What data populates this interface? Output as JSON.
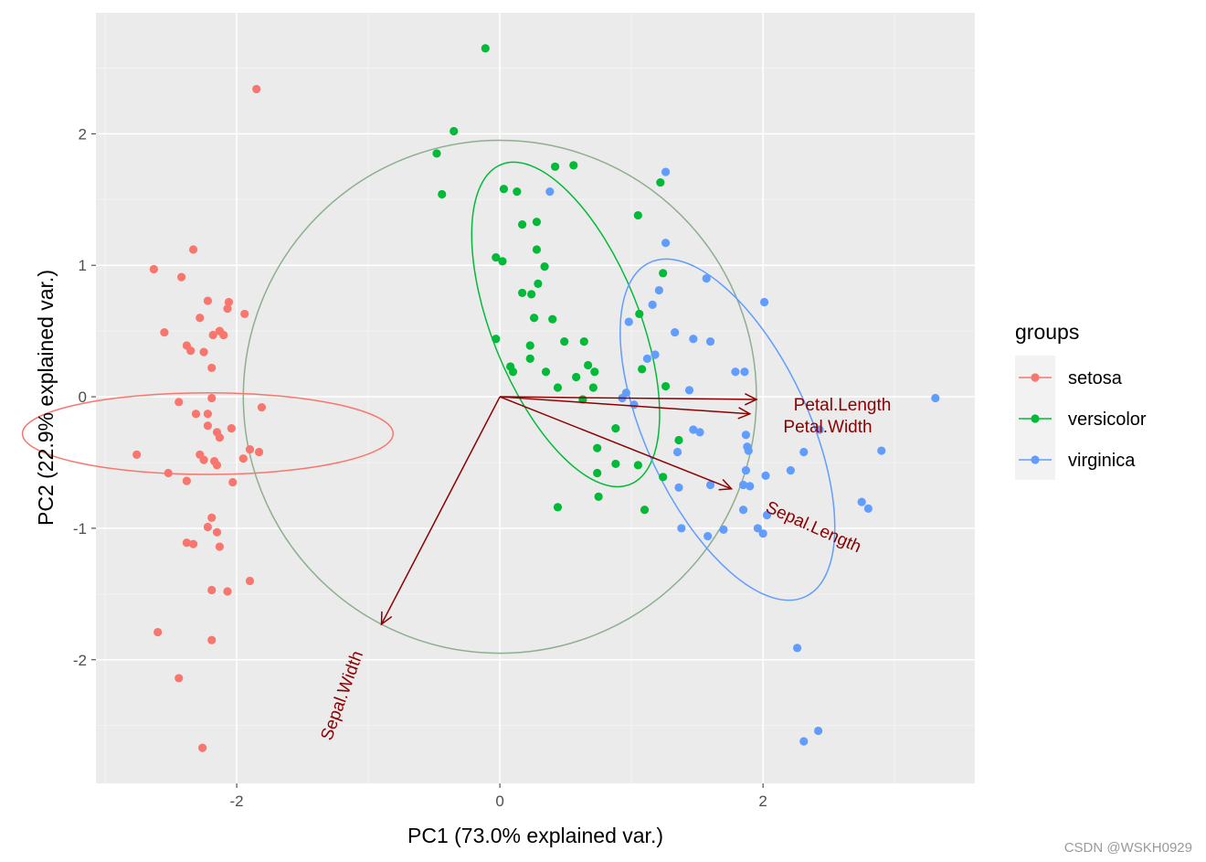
{
  "chart_data": {
    "type": "scatter",
    "title": "",
    "xlabel": "PC1 (73.0% explained var.)",
    "ylabel": "PC2 (22.9% explained var.)",
    "xlim": [
      -3.07,
      3.61
    ],
    "ylim": [
      -2.94,
      2.92
    ],
    "xticks": [
      -2,
      0,
      2
    ],
    "yticks": [
      -2,
      -1,
      0,
      1,
      2
    ],
    "xtick_labels": [
      "-2",
      "0",
      "2"
    ],
    "ytick_labels": [
      "-2",
      "-1",
      "0",
      "1",
      "2"
    ],
    "grid": true,
    "legend": {
      "title": "groups",
      "position": "right"
    },
    "series": [
      {
        "name": "setosa",
        "color": "#F8766D",
        "ellipse": {
          "cx": -2.22,
          "cy": -0.28,
          "rx": 0.31,
          "ry": 1.41,
          "angle": 90
        },
        "points": [
          [
            -2.33,
            1.12
          ],
          [
            -2.63,
            0.97
          ],
          [
            -2.42,
            0.91
          ],
          [
            -2.22,
            0.73
          ],
          [
            -2.06,
            0.72
          ],
          [
            -2.07,
            0.67
          ],
          [
            -1.94,
            0.63
          ],
          [
            -2.28,
            0.6
          ],
          [
            -2.55,
            0.49
          ],
          [
            -2.18,
            0.47
          ],
          [
            -2.13,
            0.5
          ],
          [
            -2.1,
            0.47
          ],
          [
            -2.38,
            0.39
          ],
          [
            -2.35,
            0.35
          ],
          [
            -2.25,
            0.34
          ],
          [
            -2.19,
            0.22
          ],
          [
            -2.19,
            -0.01
          ],
          [
            -2.44,
            -0.04
          ],
          [
            -1.81,
            -0.08
          ],
          [
            -2.31,
            -0.13
          ],
          [
            -2.22,
            -0.13
          ],
          [
            -2.22,
            -0.22
          ],
          [
            -2.04,
            -0.24
          ],
          [
            -2.15,
            -0.27
          ],
          [
            -2.13,
            -0.31
          ],
          [
            -2.76,
            -0.44
          ],
          [
            -2.28,
            -0.44
          ],
          [
            -2.25,
            -0.48
          ],
          [
            -2.17,
            -0.49
          ],
          [
            -2.15,
            -0.52
          ],
          [
            -1.9,
            -0.4
          ],
          [
            -1.83,
            -0.42
          ],
          [
            -1.95,
            -0.47
          ],
          [
            -2.52,
            -0.58
          ],
          [
            -2.38,
            -0.64
          ],
          [
            -2.03,
            -0.65
          ],
          [
            -2.19,
            -0.92
          ],
          [
            -2.22,
            -0.99
          ],
          [
            -2.15,
            -1.03
          ],
          [
            -2.38,
            -1.11
          ],
          [
            -2.33,
            -1.12
          ],
          [
            -2.13,
            -1.14
          ],
          [
            -1.9,
            -1.4
          ],
          [
            -2.19,
            -1.47
          ],
          [
            -2.07,
            -1.48
          ],
          [
            -2.6,
            -1.79
          ],
          [
            -2.19,
            -1.85
          ],
          [
            -1.85,
            2.34
          ],
          [
            -2.44,
            -2.14
          ],
          [
            -2.26,
            -2.67
          ]
        ]
      },
      {
        "name": "versicolor",
        "color": "#00BA38",
        "ellipse": {
          "cx": 0.5,
          "cy": 0.55,
          "rx": 1.31,
          "ry": 0.56,
          "angle": 112
        },
        "points": [
          [
            -0.35,
            2.02
          ],
          [
            -0.48,
            1.85
          ],
          [
            -0.44,
            1.54
          ],
          [
            0.42,
            1.75
          ],
          [
            0.56,
            1.76
          ],
          [
            1.22,
            1.63
          ],
          [
            0.03,
            1.58
          ],
          [
            0.13,
            1.56
          ],
          [
            1.05,
            1.38
          ],
          [
            0.17,
            1.31
          ],
          [
            0.28,
            1.33
          ],
          [
            0.28,
            1.12
          ],
          [
            -0.03,
            1.06
          ],
          [
            0.02,
            1.03
          ],
          [
            0.34,
            0.99
          ],
          [
            1.24,
            0.94
          ],
          [
            0.29,
            0.86
          ],
          [
            0.17,
            0.79
          ],
          [
            0.24,
            0.78
          ],
          [
            1.06,
            0.63
          ],
          [
            0.26,
            0.6
          ],
          [
            0.4,
            0.59
          ],
          [
            -0.03,
            0.44
          ],
          [
            0.23,
            0.39
          ],
          [
            0.49,
            0.42
          ],
          [
            0.64,
            0.42
          ],
          [
            0.23,
            0.29
          ],
          [
            1.08,
            0.21
          ],
          [
            0.08,
            0.23
          ],
          [
            0.1,
            0.19
          ],
          [
            0.35,
            0.19
          ],
          [
            0.67,
            0.24
          ],
          [
            0.72,
            0.19
          ],
          [
            0.58,
            0.15
          ],
          [
            0.44,
            0.07
          ],
          [
            0.71,
            0.07
          ],
          [
            1.26,
            0.08
          ],
          [
            0.63,
            -0.02
          ],
          [
            0.88,
            -0.24
          ],
          [
            0.74,
            -0.39
          ],
          [
            0.88,
            -0.51
          ],
          [
            1.05,
            -0.52
          ],
          [
            1.24,
            -0.61
          ],
          [
            0.74,
            -0.58
          ],
          [
            0.75,
            -0.76
          ],
          [
            0.44,
            -0.84
          ],
          [
            1.1,
            -0.86
          ],
          [
            -0.11,
            2.65
          ],
          [
            1.36,
            -0.33
          ]
        ]
      },
      {
        "name": "virginica",
        "color": "#619CFF",
        "ellipse": {
          "cx": 1.73,
          "cy": -0.25,
          "rx": 1.4,
          "ry": 0.62,
          "angle": 115
        },
        "points": [
          [
            1.26,
            1.71
          ],
          [
            1.26,
            1.17
          ],
          [
            1.57,
            0.9
          ],
          [
            1.21,
            0.81
          ],
          [
            1.16,
            0.7
          ],
          [
            2.01,
            0.72
          ],
          [
            0.98,
            0.57
          ],
          [
            1.33,
            0.49
          ],
          [
            1.47,
            0.44
          ],
          [
            1.6,
            0.42
          ],
          [
            1.12,
            0.29
          ],
          [
            1.18,
            0.32
          ],
          [
            1.79,
            0.19
          ],
          [
            1.86,
            0.19
          ],
          [
            1.44,
            0.05
          ],
          [
            3.31,
            -0.01
          ],
          [
            0.93,
            -0.01
          ],
          [
            0.96,
            0.03
          ],
          [
            1.02,
            -0.06
          ],
          [
            2.43,
            -0.25
          ],
          [
            1.47,
            -0.25
          ],
          [
            1.52,
            -0.27
          ],
          [
            1.87,
            -0.29
          ],
          [
            1.88,
            -0.38
          ],
          [
            1.89,
            -0.41
          ],
          [
            1.35,
            -0.42
          ],
          [
            2.31,
            -0.42
          ],
          [
            2.9,
            -0.41
          ],
          [
            1.87,
            -0.56
          ],
          [
            2.21,
            -0.56
          ],
          [
            2.02,
            -0.6
          ],
          [
            1.36,
            -0.69
          ],
          [
            1.6,
            -0.67
          ],
          [
            1.85,
            -0.67
          ],
          [
            1.9,
            -0.68
          ],
          [
            2.75,
            -0.8
          ],
          [
            2.8,
            -0.85
          ],
          [
            1.85,
            -0.86
          ],
          [
            2.03,
            -0.9
          ],
          [
            1.38,
            -1.0
          ],
          [
            1.58,
            -1.06
          ],
          [
            1.7,
            -1.01
          ],
          [
            1.96,
            -1.0
          ],
          [
            2.0,
            -1.04
          ],
          [
            0.38,
            1.56
          ],
          [
            2.26,
            -1.91
          ],
          [
            2.31,
            -2.62
          ],
          [
            2.42,
            -2.54
          ]
        ]
      }
    ],
    "circle": {
      "radius": 1.95,
      "color": "#8FAE8F"
    },
    "variables": [
      {
        "name": "Petal.Length",
        "x": 1.95,
        "y": -0.02
      },
      {
        "name": "Petal.Width",
        "x": 1.9,
        "y": -0.13
      },
      {
        "name": "Sepal.Length",
        "x": 1.76,
        "y": -0.7
      },
      {
        "name": "Sepal.Width",
        "x": -0.9,
        "y": -1.73
      }
    ],
    "arrow_color": "#8B0000"
  },
  "watermark": "CSDN @WSKH0929"
}
